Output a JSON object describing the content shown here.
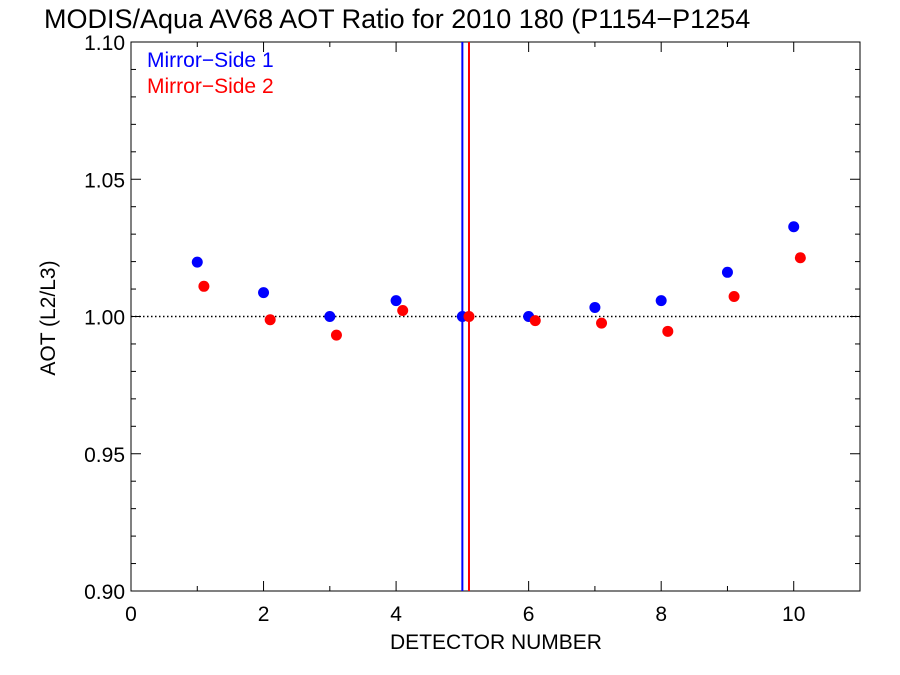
{
  "chart_data": {
    "type": "scatter",
    "title": "MODIS/Aqua AV68 AOT Ratio for 2010 180 (P1154−P1254",
    "xlabel": "DETECTOR NUMBER",
    "ylabel": "AOT (L2/L3)",
    "xlim": [
      0,
      11
    ],
    "ylim": [
      0.9,
      1.1
    ],
    "xticks": [
      0,
      2,
      4,
      6,
      8,
      10
    ],
    "xtick_labels": [
      "0",
      "2",
      "4",
      "6",
      "8",
      "10"
    ],
    "yticks": [
      0.9,
      0.95,
      1.0,
      1.05,
      1.1
    ],
    "ytick_labels": [
      "0.90",
      "0.95",
      "1.00",
      "1.05",
      "1.10"
    ],
    "reference_line_y": 1.0,
    "legend_placement": "top-left",
    "grid": false,
    "series": [
      {
        "name": "Mirror−Side 1",
        "color": "#0000ff",
        "x": [
          1,
          2,
          3,
          4,
          5,
          6,
          7,
          8,
          9,
          10
        ],
        "y": [
          1.0198,
          1.0087,
          1.0,
          1.0058,
          1.0,
          1.0,
          1.0033,
          1.0058,
          1.0161,
          1.0327
        ],
        "vertical_line_x": 5.0
      },
      {
        "name": "Mirror−Side 2",
        "color": "#ff0000",
        "x": [
          1.1,
          2.1,
          3.1,
          4.1,
          5.1,
          6.1,
          7.1,
          8.1,
          9.1,
          10.1
        ],
        "y": [
          1.011,
          0.9988,
          0.9932,
          1.0022,
          1.0,
          0.9985,
          0.9976,
          0.9946,
          1.0073,
          1.0214
        ],
        "vertical_line_x": 5.1
      }
    ]
  }
}
